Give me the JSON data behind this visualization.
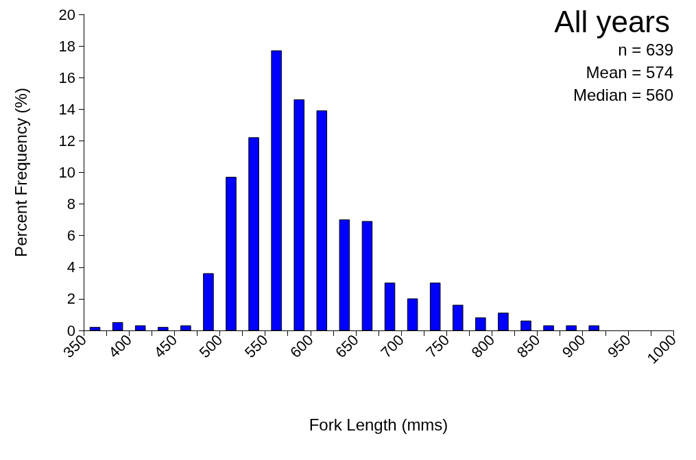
{
  "chart_data": {
    "type": "histogram",
    "title": "All years",
    "xlabel": "Fork Length (mms)",
    "ylabel": "Percent Frequency (%)",
    "annotations": [
      "n = 639",
      "Mean = 574",
      "Median = 560"
    ],
    "bins": [
      350,
      375,
      400,
      425,
      450,
      475,
      500,
      525,
      550,
      575,
      600,
      625,
      650,
      675,
      700,
      725,
      750,
      775,
      800,
      825,
      850,
      875,
      900,
      925,
      950,
      975,
      1000
    ],
    "values": [
      0.2,
      0.5,
      0.3,
      0.2,
      0.3,
      3.6,
      9.7,
      12.2,
      17.7,
      14.6,
      13.9,
      7.0,
      6.9,
      3.0,
      2.0,
      3.0,
      1.6,
      0.8,
      1.1,
      0.6,
      0.3,
      0.3,
      0.3,
      0,
      0,
      0
    ],
    "color": "#0000ff",
    "xlim": [
      350,
      1000
    ],
    "xticks": [
      350,
      {
        "value": 375,
        "label": null
      },
      400,
      {
        "value": 425,
        "label": null
      },
      450,
      {
        "value": 475,
        "label": null
      },
      500,
      {
        "value": 525,
        "label": null
      },
      550,
      {
        "value": 575,
        "label": null
      },
      600,
      {
        "value": 625,
        "label": null
      },
      650,
      {
        "value": 675,
        "label": null
      },
      700,
      {
        "value": 725,
        "label": null
      },
      750,
      {
        "value": 775,
        "label": null
      },
      800,
      {
        "value": 825,
        "label": null
      },
      850,
      {
        "value": 875,
        "label": null
      },
      900,
      {
        "value": 925,
        "label": null
      },
      950,
      {
        "value": 975,
        "label": null
      },
      1000
    ],
    "ylim": [
      0,
      20
    ],
    "yticks": [
      0,
      2,
      4,
      6,
      8,
      10,
      12,
      14,
      16,
      18,
      20
    ],
    "grid": false
  }
}
